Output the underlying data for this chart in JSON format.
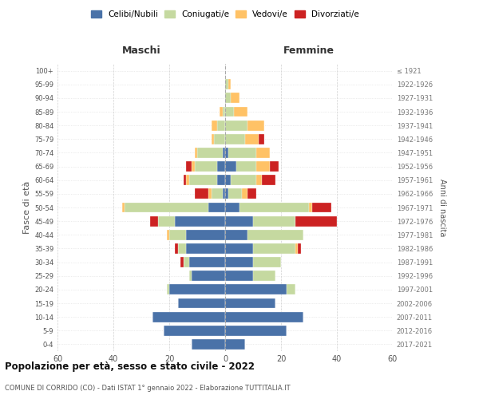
{
  "age_groups": [
    "0-4",
    "5-9",
    "10-14",
    "15-19",
    "20-24",
    "25-29",
    "30-34",
    "35-39",
    "40-44",
    "45-49",
    "50-54",
    "55-59",
    "60-64",
    "65-69",
    "70-74",
    "75-79",
    "80-84",
    "85-89",
    "90-94",
    "95-99",
    "100+"
  ],
  "birth_years": [
    "2017-2021",
    "2012-2016",
    "2007-2011",
    "2002-2006",
    "1997-2001",
    "1992-1996",
    "1987-1991",
    "1982-1986",
    "1977-1981",
    "1972-1976",
    "1967-1971",
    "1962-1966",
    "1957-1961",
    "1952-1956",
    "1947-1951",
    "1942-1946",
    "1937-1941",
    "1932-1936",
    "1927-1931",
    "1922-1926",
    "≤ 1921"
  ],
  "male": {
    "celibi": [
      12,
      22,
      26,
      17,
      20,
      12,
      13,
      14,
      14,
      18,
      6,
      1,
      3,
      3,
      1,
      0,
      0,
      0,
      0,
      0,
      0
    ],
    "coniugati": [
      0,
      0,
      0,
      0,
      1,
      1,
      2,
      3,
      6,
      6,
      30,
      4,
      10,
      8,
      9,
      4,
      3,
      1,
      0,
      0,
      0
    ],
    "vedovi": [
      0,
      0,
      0,
      0,
      0,
      0,
      0,
      0,
      1,
      0,
      1,
      1,
      1,
      1,
      1,
      1,
      2,
      1,
      0,
      0,
      0
    ],
    "divorziati": [
      0,
      0,
      0,
      0,
      0,
      0,
      1,
      1,
      0,
      3,
      0,
      5,
      1,
      2,
      0,
      0,
      0,
      0,
      0,
      0,
      0
    ]
  },
  "female": {
    "nubili": [
      7,
      22,
      28,
      18,
      22,
      10,
      10,
      10,
      8,
      10,
      5,
      1,
      2,
      4,
      1,
      0,
      0,
      0,
      0,
      0,
      0
    ],
    "coniugate": [
      0,
      0,
      0,
      0,
      3,
      8,
      10,
      15,
      20,
      15,
      25,
      5,
      9,
      7,
      10,
      7,
      8,
      3,
      2,
      1,
      0
    ],
    "vedove": [
      0,
      0,
      0,
      0,
      0,
      0,
      0,
      1,
      0,
      0,
      1,
      2,
      2,
      5,
      5,
      5,
      6,
      5,
      3,
      1,
      0
    ],
    "divorziate": [
      0,
      0,
      0,
      0,
      0,
      0,
      0,
      1,
      0,
      15,
      7,
      3,
      5,
      3,
      0,
      2,
      0,
      0,
      0,
      0,
      0
    ]
  },
  "colors": {
    "celibi_nubili": "#4a72a8",
    "coniugati": "#c5d9a0",
    "vedovi": "#ffc266",
    "divorziati": "#cc2222"
  },
  "title": "Popolazione per età, sesso e stato civile - 2022",
  "subtitle": "COMUNE DI CORRIDO (CO) - Dati ISTAT 1° gennaio 2022 - Elaborazione TUTTITALIA.IT",
  "xlabel_left": "Maschi",
  "xlabel_right": "Femmine",
  "ylabel_left": "Fasce di età",
  "ylabel_right": "Anni di nascita",
  "legend_labels": [
    "Celibi/Nubili",
    "Coniugati/e",
    "Vedovi/e",
    "Divorziati/e"
  ],
  "xlim": 60,
  "background_color": "#ffffff",
  "grid_color": "#cccccc"
}
